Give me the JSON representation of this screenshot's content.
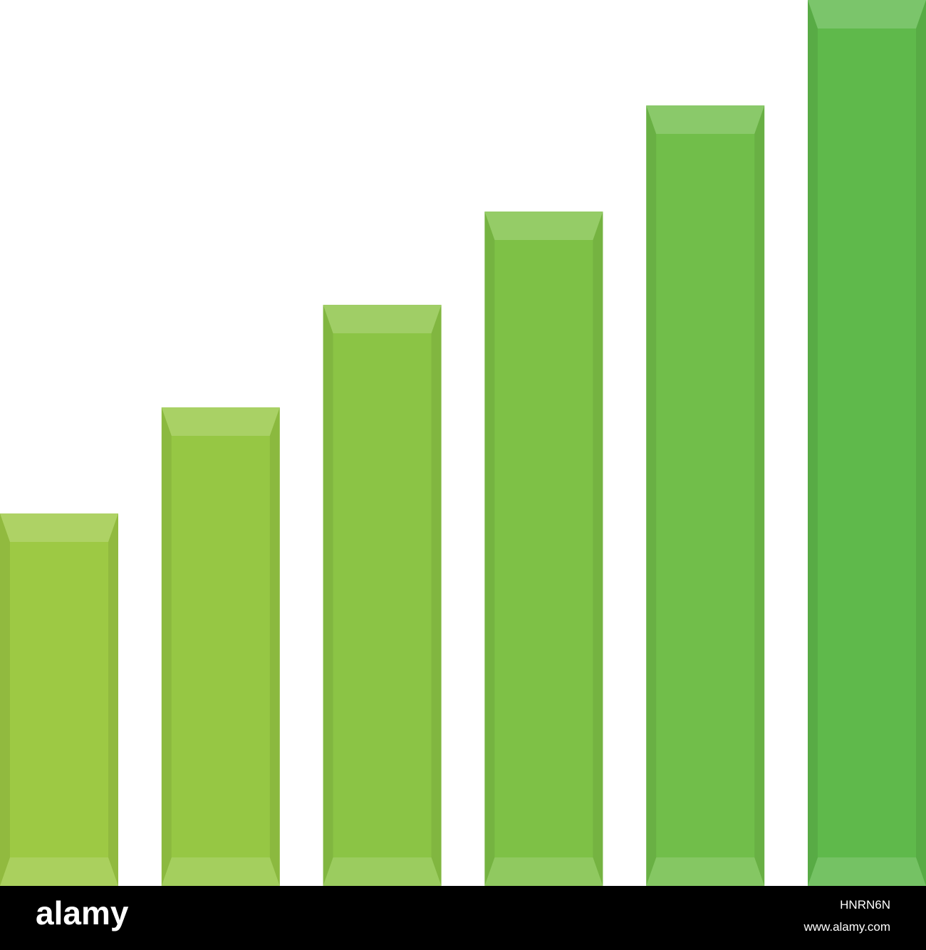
{
  "chart_data": {
    "type": "bar",
    "values": [
      523,
      672,
      816,
      947,
      1096,
      1244
    ],
    "colors": [
      "#9dc944",
      "#96c744",
      "#8bc445",
      "#7ec146",
      "#71be4a",
      "#5fb94b"
    ],
    "ylim": [
      0,
      1244
    ]
  },
  "footer": {
    "logo": "alamy",
    "image_id": "HNRN6N",
    "url": "www.alamy.com"
  }
}
